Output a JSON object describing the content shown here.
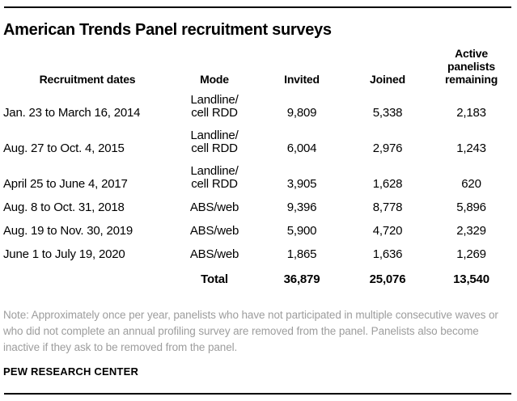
{
  "title": "American Trends Panel recruitment surveys",
  "table": {
    "headers": {
      "dates": "Recruitment dates",
      "mode": "Mode",
      "invited": "Invited",
      "joined": "Joined",
      "active": "Active\npanelists\nremaining"
    },
    "rows": [
      {
        "dates": "Jan. 23 to March 16, 2014",
        "mode": "Landline/\ncell RDD",
        "invited": "9,809",
        "joined": "5,338",
        "active": "2,183"
      },
      {
        "dates": "Aug. 27 to Oct. 4, 2015",
        "mode": "Landline/\ncell RDD",
        "invited": "6,004",
        "joined": "2,976",
        "active": "1,243"
      },
      {
        "dates": "April 25 to June 4, 2017",
        "mode": "Landline/\ncell RDD",
        "invited": "3,905",
        "joined": "1,628",
        "active": "620"
      },
      {
        "dates": "Aug. 8 to Oct. 31, 2018",
        "mode": "ABS/web",
        "invited": "9,396",
        "joined": "8,778",
        "active": "5,896"
      },
      {
        "dates": "Aug. 19 to Nov. 30, 2019",
        "mode": "ABS/web",
        "invited": "5,900",
        "joined": "4,720",
        "active": "2,329"
      },
      {
        "dates": "June 1 to July 19, 2020",
        "mode": "ABS/web",
        "invited": "1,865",
        "joined": "1,636",
        "active": "1,269"
      }
    ],
    "total": {
      "label": "Total",
      "invited": "36,879",
      "joined": "25,076",
      "active": "13,540"
    }
  },
  "note": "Note: Approximately once per year, panelists who have not participated in multiple consecutive waves or who did not complete an annual profiling survey are removed from the panel. Panelists also become inactive if they ask to be removed from the panel.",
  "source": "PEW RESEARCH CENTER",
  "colors": {
    "text": "#000000",
    "note_text": "#9d9d9d",
    "rule": "#000000",
    "background": "#ffffff"
  },
  "chart_data": {
    "type": "table",
    "title": "American Trends Panel recruitment surveys",
    "columns": [
      "Recruitment dates",
      "Mode",
      "Invited",
      "Joined",
      "Active panelists remaining"
    ],
    "rows": [
      [
        "Jan. 23 to March 16, 2014",
        "Landline/cell RDD",
        9809,
        5338,
        2183
      ],
      [
        "Aug. 27 to Oct. 4, 2015",
        "Landline/cell RDD",
        6004,
        2976,
        1243
      ],
      [
        "April 25 to June 4, 2017",
        "Landline/cell RDD",
        3905,
        1628,
        620
      ],
      [
        "Aug. 8 to Oct. 31, 2018",
        "ABS/web",
        9396,
        8778,
        5896
      ],
      [
        "Aug. 19 to Nov. 30, 2019",
        "ABS/web",
        5900,
        4720,
        2329
      ],
      [
        "June 1 to July 19, 2020",
        "ABS/web",
        1865,
        1636,
        1269
      ]
    ],
    "total_row": [
      "",
      "Total",
      36879,
      25076,
      13540
    ],
    "note": "Note: Approximately once per year, panelists who have not participated in multiple consecutive waves or who did not complete an annual profiling survey are removed from the panel. Panelists also become inactive if they ask to be removed from the panel.",
    "source": "PEW RESEARCH CENTER"
  }
}
